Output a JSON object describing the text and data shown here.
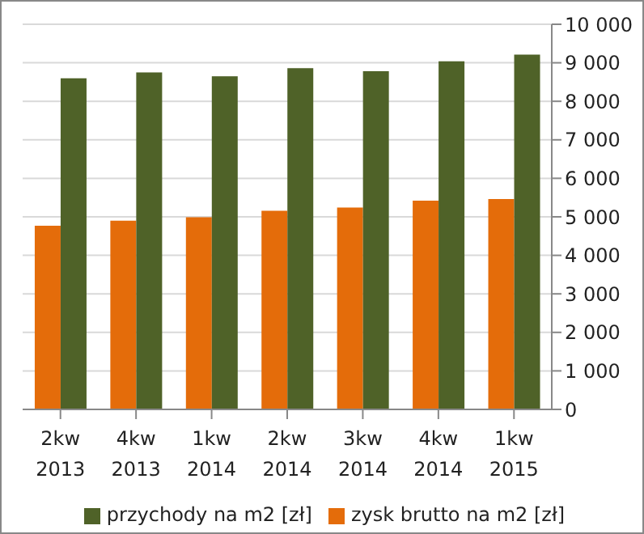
{
  "chart_data": {
    "type": "bar",
    "categories": [
      "2kw 2013",
      "4kw 2013",
      "1kw 2014",
      "2kw 2014",
      "3kw 2014",
      "4kw 2014",
      "1kw 2015"
    ],
    "series": [
      {
        "name": "przychody na m2 [zł]",
        "color": "#4f6228",
        "values": [
          8600,
          8750,
          8650,
          8860,
          8780,
          9040,
          9210
        ]
      },
      {
        "name": "zysk brutto na m2 [zł]",
        "color": "#e46c0a",
        "values": [
          4770,
          4900,
          4990,
          5160,
          5240,
          5420,
          5460
        ]
      }
    ],
    "ylim": [
      0,
      10000
    ],
    "yticks": [
      {
        "value": 0,
        "label": "0"
      },
      {
        "value": 1000,
        "label": "1 000"
      },
      {
        "value": 2000,
        "label": "2 000"
      },
      {
        "value": 3000,
        "label": "3 000"
      },
      {
        "value": 4000,
        "label": "4 000"
      },
      {
        "value": 5000,
        "label": "5 000"
      },
      {
        "value": 6000,
        "label": "6 000"
      },
      {
        "value": 7000,
        "label": "7 000"
      },
      {
        "value": 8000,
        "label": "8 000"
      },
      {
        "value": 9000,
        "label": "9 000"
      },
      {
        "value": 10000,
        "label": "10 000"
      }
    ],
    "grid": "y",
    "legend": "bottom"
  }
}
